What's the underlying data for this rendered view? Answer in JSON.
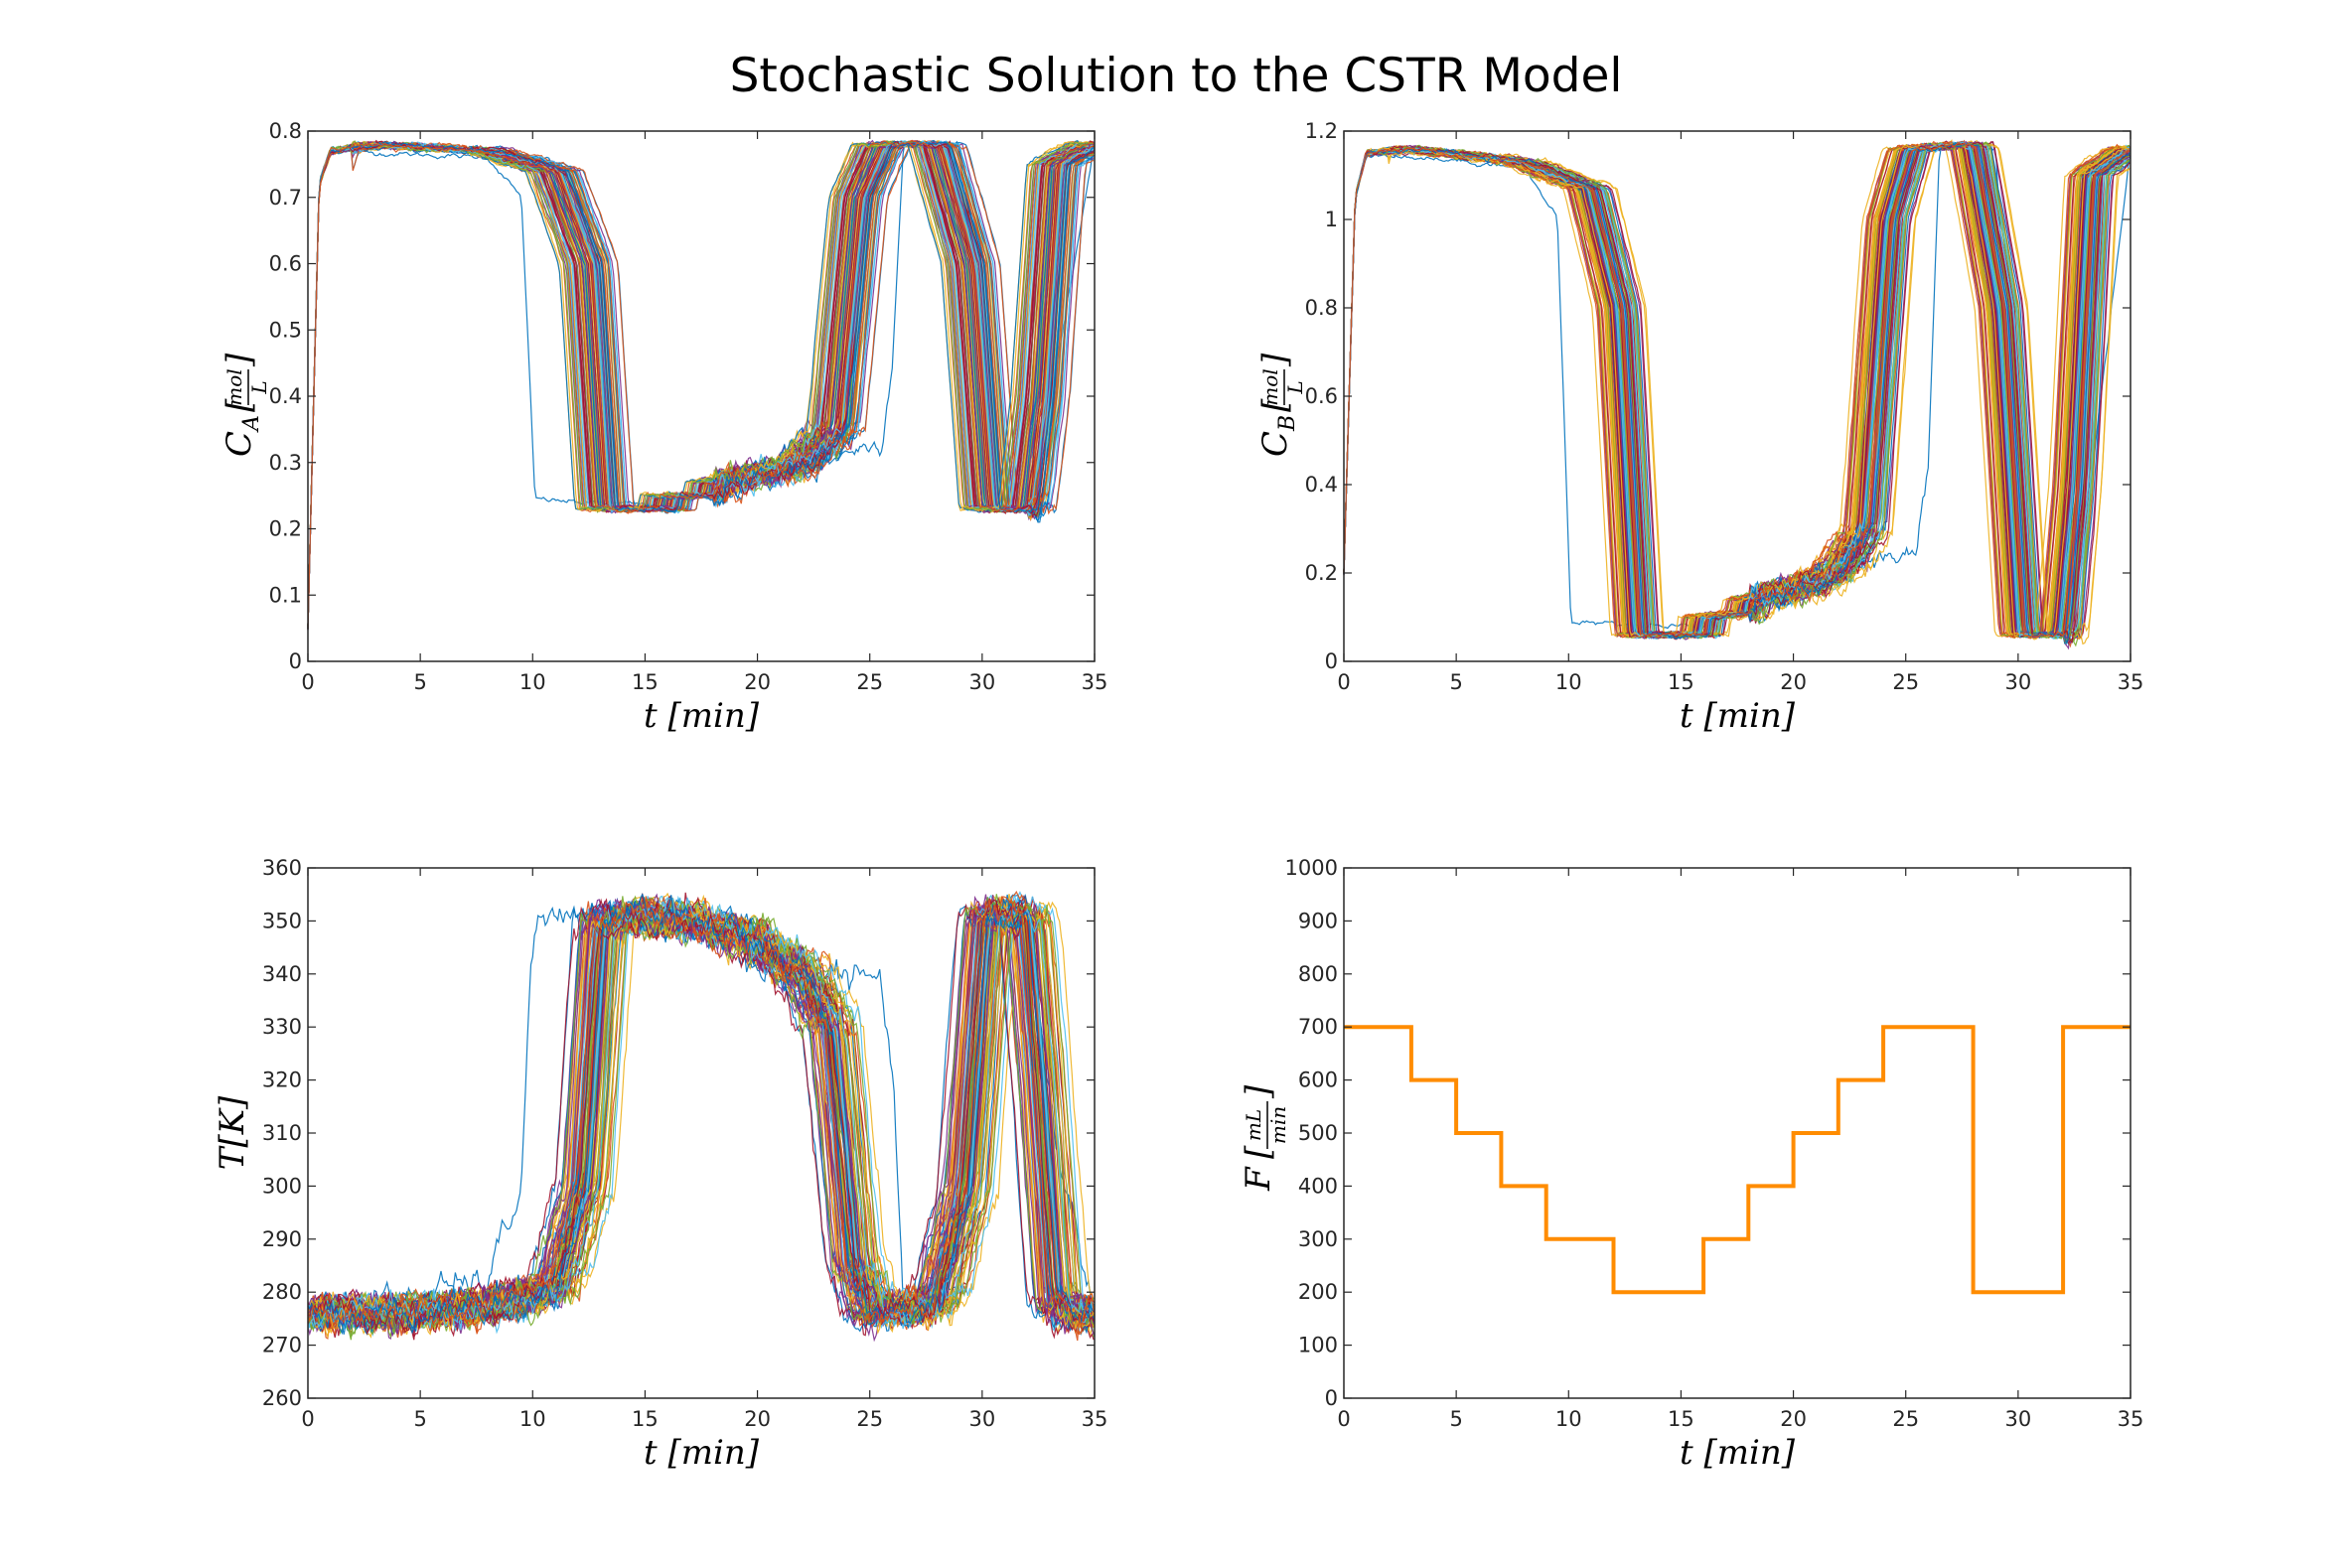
{
  "figure": {
    "title": "Stochastic Solution to the CSTR Model"
  },
  "chart_data": [
    {
      "id": "ca",
      "type": "line",
      "title": "",
      "xlabel": "t [min]",
      "ylabel": "C_A [mol/L]",
      "xlim": [
        0,
        35
      ],
      "ylim": [
        0,
        0.8
      ],
      "xticks": [
        "0",
        "5",
        "10",
        "15",
        "20",
        "25",
        "30",
        "35"
      ],
      "yticks": [
        "0",
        "0.1",
        "0.2",
        "0.3",
        "0.4",
        "0.5",
        "0.6",
        "0.7",
        "0.8"
      ],
      "series_count": 100,
      "ensemble": "stochastic realizations (Monte Carlo trajectories)",
      "mean_profile": [
        {
          "x": 0,
          "y": 0.05
        },
        {
          "x": 0.5,
          "y": 0.72
        },
        {
          "x": 1,
          "y": 0.77
        },
        {
          "x": 3,
          "y": 0.78
        },
        {
          "x": 8,
          "y": 0.77
        },
        {
          "x": 11,
          "y": 0.74
        },
        {
          "x": 12.5,
          "y": 0.6
        },
        {
          "x": 13.2,
          "y": 0.23
        },
        {
          "x": 16,
          "y": 0.23
        },
        {
          "x": 16.1,
          "y": 0.25
        },
        {
          "x": 18,
          "y": 0.25
        },
        {
          "x": 18.1,
          "y": 0.27
        },
        {
          "x": 20,
          "y": 0.28
        },
        {
          "x": 22,
          "y": 0.3
        },
        {
          "x": 23.5,
          "y": 0.35
        },
        {
          "x": 24.5,
          "y": 0.7
        },
        {
          "x": 25.5,
          "y": 0.78
        },
        {
          "x": 28,
          "y": 0.78
        },
        {
          "x": 29.5,
          "y": 0.6
        },
        {
          "x": 30.3,
          "y": 0.23
        },
        {
          "x": 32,
          "y": 0.23
        },
        {
          "x": 32.6,
          "y": 0.4
        },
        {
          "x": 33.3,
          "y": 0.75
        },
        {
          "x": 35,
          "y": 0.78
        }
      ],
      "outlier_profile": [
        {
          "x": 0,
          "y": 0.05
        },
        {
          "x": 0.5,
          "y": 0.72
        },
        {
          "x": 1,
          "y": 0.77
        },
        {
          "x": 8,
          "y": 0.76
        },
        {
          "x": 9.5,
          "y": 0.7
        },
        {
          "x": 9.9,
          "y": 0.4
        },
        {
          "x": 10.1,
          "y": 0.245
        },
        {
          "x": 12,
          "y": 0.24
        },
        {
          "x": 16,
          "y": 0.235
        },
        {
          "x": 22,
          "y": 0.3
        },
        {
          "x": 25.5,
          "y": 0.33
        },
        {
          "x": 26,
          "y": 0.45
        },
        {
          "x": 26.5,
          "y": 0.78
        },
        {
          "x": 29,
          "y": 0.78
        },
        {
          "x": 30.3,
          "y": 0.23
        },
        {
          "x": 32,
          "y": 0.23
        },
        {
          "x": 33.2,
          "y": 0.42
        },
        {
          "x": 35,
          "y": 0.78
        }
      ]
    },
    {
      "id": "cb",
      "type": "line",
      "title": "",
      "xlabel": "t [min]",
      "ylabel": "C_B [mol/L]",
      "xlim": [
        0,
        35
      ],
      "ylim": [
        0,
        1.2
      ],
      "xticks": [
        "0",
        "5",
        "10",
        "15",
        "20",
        "25",
        "30",
        "35"
      ],
      "yticks": [
        "0",
        "0.2",
        "0.4",
        "0.6",
        "0.8",
        "1",
        "1.2"
      ],
      "series_count": 100,
      "ensemble": "stochastic realizations (Monte Carlo trajectories)",
      "mean_profile": [
        {
          "x": 0,
          "y": 0.2
        },
        {
          "x": 0.5,
          "y": 1.05
        },
        {
          "x": 1,
          "y": 1.15
        },
        {
          "x": 3,
          "y": 1.16
        },
        {
          "x": 8,
          "y": 1.13
        },
        {
          "x": 11,
          "y": 1.07
        },
        {
          "x": 12.3,
          "y": 0.8
        },
        {
          "x": 13.1,
          "y": 0.06
        },
        {
          "x": 16,
          "y": 0.06
        },
        {
          "x": 16.1,
          "y": 0.1
        },
        {
          "x": 18,
          "y": 0.11
        },
        {
          "x": 18.1,
          "y": 0.14
        },
        {
          "x": 20,
          "y": 0.16
        },
        {
          "x": 22,
          "y": 0.2
        },
        {
          "x": 23.3,
          "y": 0.3
        },
        {
          "x": 24.3,
          "y": 1.0
        },
        {
          "x": 25.2,
          "y": 1.16
        },
        {
          "x": 28,
          "y": 1.17
        },
        {
          "x": 29.3,
          "y": 0.8
        },
        {
          "x": 30.2,
          "y": 0.06
        },
        {
          "x": 32,
          "y": 0.06
        },
        {
          "x": 32.6,
          "y": 0.4
        },
        {
          "x": 33.3,
          "y": 1.1
        },
        {
          "x": 35,
          "y": 1.16
        }
      ],
      "outlier_profile": [
        {
          "x": 0,
          "y": 0.2
        },
        {
          "x": 0.5,
          "y": 1.05
        },
        {
          "x": 1,
          "y": 1.15
        },
        {
          "x": 8,
          "y": 1.12
        },
        {
          "x": 9.5,
          "y": 1.0
        },
        {
          "x": 9.9,
          "y": 0.4
        },
        {
          "x": 10.1,
          "y": 0.09
        },
        {
          "x": 12,
          "y": 0.085
        },
        {
          "x": 16,
          "y": 0.08
        },
        {
          "x": 22,
          "y": 0.2
        },
        {
          "x": 25.5,
          "y": 0.26
        },
        {
          "x": 26,
          "y": 0.45
        },
        {
          "x": 26.5,
          "y": 1.16
        },
        {
          "x": 29,
          "y": 1.16
        },
        {
          "x": 30.2,
          "y": 0.06
        },
        {
          "x": 32,
          "y": 0.06
        },
        {
          "x": 33.2,
          "y": 0.4
        },
        {
          "x": 35,
          "y": 1.16
        }
      ]
    },
    {
      "id": "temp",
      "type": "line",
      "title": "",
      "xlabel": "t [min]",
      "ylabel": "T[K]",
      "xlim": [
        0,
        35
      ],
      "ylim": [
        260,
        360
      ],
      "xticks": [
        "0",
        "5",
        "10",
        "15",
        "20",
        "25",
        "30",
        "35"
      ],
      "yticks": [
        "260",
        "270",
        "280",
        "290",
        "300",
        "310",
        "320",
        "330",
        "340",
        "350",
        "360"
      ],
      "series_count": 100,
      "ensemble": "stochastic realizations (Monte Carlo trajectories)",
      "mean_profile": [
        {
          "x": 0,
          "y": 276
        },
        {
          "x": 5,
          "y": 276
        },
        {
          "x": 9,
          "y": 278
        },
        {
          "x": 11,
          "y": 281
        },
        {
          "x": 12.3,
          "y": 300
        },
        {
          "x": 13.1,
          "y": 350
        },
        {
          "x": 16,
          "y": 351
        },
        {
          "x": 18,
          "y": 349
        },
        {
          "x": 20,
          "y": 346
        },
        {
          "x": 22,
          "y": 340
        },
        {
          "x": 23.3,
          "y": 330
        },
        {
          "x": 24.3,
          "y": 285
        },
        {
          "x": 25.2,
          "y": 276
        },
        {
          "x": 28,
          "y": 278
        },
        {
          "x": 29.3,
          "y": 300
        },
        {
          "x": 30.2,
          "y": 351
        },
        {
          "x": 32,
          "y": 351
        },
        {
          "x": 32.6,
          "y": 320
        },
        {
          "x": 33.3,
          "y": 278
        },
        {
          "x": 35,
          "y": 275
        }
      ],
      "outlier_profile": [
        {
          "x": 0,
          "y": 276
        },
        {
          "x": 8,
          "y": 282
        },
        {
          "x": 9.5,
          "y": 300
        },
        {
          "x": 9.9,
          "y": 340
        },
        {
          "x": 10.1,
          "y": 350
        },
        {
          "x": 12,
          "y": 350
        },
        {
          "x": 16,
          "y": 351
        },
        {
          "x": 22,
          "y": 342
        },
        {
          "x": 25.5,
          "y": 338
        },
        {
          "x": 26,
          "y": 320
        },
        {
          "x": 26.5,
          "y": 278
        },
        {
          "x": 29,
          "y": 279
        },
        {
          "x": 30.2,
          "y": 351
        },
        {
          "x": 32,
          "y": 350
        },
        {
          "x": 33.2,
          "y": 310
        },
        {
          "x": 35,
          "y": 276
        }
      ]
    },
    {
      "id": "flow",
      "type": "line",
      "title": "",
      "xlabel": "t [min]",
      "ylabel": "F [mL/min]",
      "xlim": [
        0,
        35
      ],
      "ylim": [
        0,
        1000
      ],
      "xticks": [
        "0",
        "5",
        "10",
        "15",
        "20",
        "25",
        "30",
        "35"
      ],
      "yticks": [
        "0",
        "100",
        "200",
        "300",
        "400",
        "500",
        "600",
        "700",
        "800",
        "900",
        "1000"
      ],
      "color": "#ff8c00",
      "series": [
        {
          "x": [
            0,
            3,
            3,
            5,
            5,
            7,
            7,
            9,
            9,
            12,
            12,
            16,
            16,
            18,
            18,
            20,
            20,
            22,
            22,
            24,
            24,
            28,
            28,
            32,
            32,
            35
          ],
          "y": [
            700,
            700,
            600,
            600,
            500,
            500,
            400,
            400,
            300,
            300,
            200,
            200,
            300,
            300,
            400,
            400,
            500,
            500,
            600,
            600,
            700,
            700,
            200,
            200,
            700,
            700
          ]
        }
      ]
    }
  ],
  "palette": [
    "#0072BD",
    "#D95319",
    "#EDB120",
    "#7E2F8E",
    "#77AC30",
    "#4DBEEE",
    "#A2142F"
  ]
}
